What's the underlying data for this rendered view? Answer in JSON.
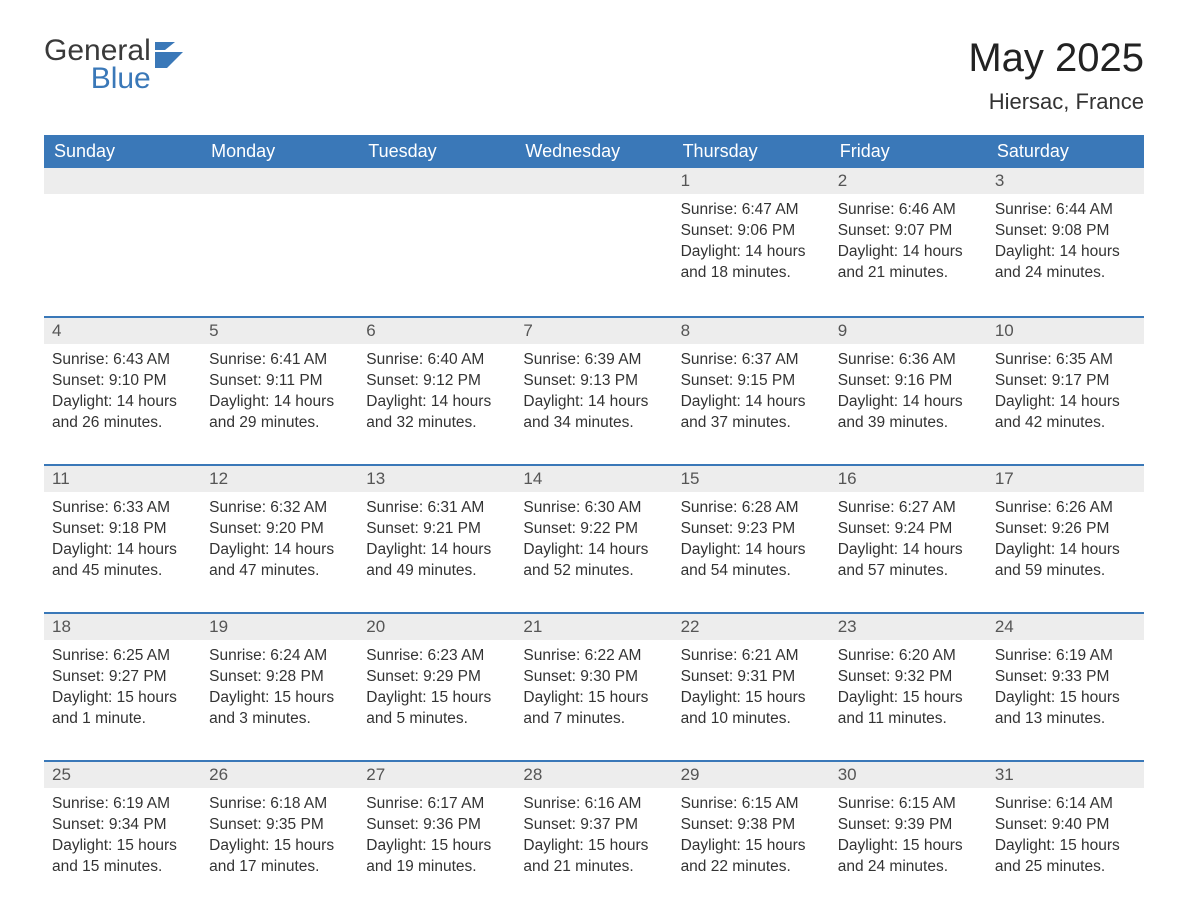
{
  "brand": {
    "word1": "General",
    "word2": "Blue"
  },
  "title": "May 2025",
  "location": "Hiersac, France",
  "colors": {
    "header_bg": "#3a78b8",
    "header_text": "#ffffff",
    "daynum_bg": "#ededed",
    "daynum_border": "#3a78b8",
    "body_text": "#333333",
    "page_bg": "#ffffff"
  },
  "fonts": {
    "title_size_pt": 30,
    "header_size_pt": 14,
    "body_size_pt": 12
  },
  "day_headers": [
    "Sunday",
    "Monday",
    "Tuesday",
    "Wednesday",
    "Thursday",
    "Friday",
    "Saturday"
  ],
  "weeks": [
    [
      null,
      null,
      null,
      null,
      {
        "n": "1",
        "sunrise": "Sunrise: 6:47 AM",
        "sunset": "Sunset: 9:06 PM",
        "daylight": "Daylight: 14 hours and 18 minutes."
      },
      {
        "n": "2",
        "sunrise": "Sunrise: 6:46 AM",
        "sunset": "Sunset: 9:07 PM",
        "daylight": "Daylight: 14 hours and 21 minutes."
      },
      {
        "n": "3",
        "sunrise": "Sunrise: 6:44 AM",
        "sunset": "Sunset: 9:08 PM",
        "daylight": "Daylight: 14 hours and 24 minutes."
      }
    ],
    [
      {
        "n": "4",
        "sunrise": "Sunrise: 6:43 AM",
        "sunset": "Sunset: 9:10 PM",
        "daylight": "Daylight: 14 hours and 26 minutes."
      },
      {
        "n": "5",
        "sunrise": "Sunrise: 6:41 AM",
        "sunset": "Sunset: 9:11 PM",
        "daylight": "Daylight: 14 hours and 29 minutes."
      },
      {
        "n": "6",
        "sunrise": "Sunrise: 6:40 AM",
        "sunset": "Sunset: 9:12 PM",
        "daylight": "Daylight: 14 hours and 32 minutes."
      },
      {
        "n": "7",
        "sunrise": "Sunrise: 6:39 AM",
        "sunset": "Sunset: 9:13 PM",
        "daylight": "Daylight: 14 hours and 34 minutes."
      },
      {
        "n": "8",
        "sunrise": "Sunrise: 6:37 AM",
        "sunset": "Sunset: 9:15 PM",
        "daylight": "Daylight: 14 hours and 37 minutes."
      },
      {
        "n": "9",
        "sunrise": "Sunrise: 6:36 AM",
        "sunset": "Sunset: 9:16 PM",
        "daylight": "Daylight: 14 hours and 39 minutes."
      },
      {
        "n": "10",
        "sunrise": "Sunrise: 6:35 AM",
        "sunset": "Sunset: 9:17 PM",
        "daylight": "Daylight: 14 hours and 42 minutes."
      }
    ],
    [
      {
        "n": "11",
        "sunrise": "Sunrise: 6:33 AM",
        "sunset": "Sunset: 9:18 PM",
        "daylight": "Daylight: 14 hours and 45 minutes."
      },
      {
        "n": "12",
        "sunrise": "Sunrise: 6:32 AM",
        "sunset": "Sunset: 9:20 PM",
        "daylight": "Daylight: 14 hours and 47 minutes."
      },
      {
        "n": "13",
        "sunrise": "Sunrise: 6:31 AM",
        "sunset": "Sunset: 9:21 PM",
        "daylight": "Daylight: 14 hours and 49 minutes."
      },
      {
        "n": "14",
        "sunrise": "Sunrise: 6:30 AM",
        "sunset": "Sunset: 9:22 PM",
        "daylight": "Daylight: 14 hours and 52 minutes."
      },
      {
        "n": "15",
        "sunrise": "Sunrise: 6:28 AM",
        "sunset": "Sunset: 9:23 PM",
        "daylight": "Daylight: 14 hours and 54 minutes."
      },
      {
        "n": "16",
        "sunrise": "Sunrise: 6:27 AM",
        "sunset": "Sunset: 9:24 PM",
        "daylight": "Daylight: 14 hours and 57 minutes."
      },
      {
        "n": "17",
        "sunrise": "Sunrise: 6:26 AM",
        "sunset": "Sunset: 9:26 PM",
        "daylight": "Daylight: 14 hours and 59 minutes."
      }
    ],
    [
      {
        "n": "18",
        "sunrise": "Sunrise: 6:25 AM",
        "sunset": "Sunset: 9:27 PM",
        "daylight": "Daylight: 15 hours and 1 minute."
      },
      {
        "n": "19",
        "sunrise": "Sunrise: 6:24 AM",
        "sunset": "Sunset: 9:28 PM",
        "daylight": "Daylight: 15 hours and 3 minutes."
      },
      {
        "n": "20",
        "sunrise": "Sunrise: 6:23 AM",
        "sunset": "Sunset: 9:29 PM",
        "daylight": "Daylight: 15 hours and 5 minutes."
      },
      {
        "n": "21",
        "sunrise": "Sunrise: 6:22 AM",
        "sunset": "Sunset: 9:30 PM",
        "daylight": "Daylight: 15 hours and 7 minutes."
      },
      {
        "n": "22",
        "sunrise": "Sunrise: 6:21 AM",
        "sunset": "Sunset: 9:31 PM",
        "daylight": "Daylight: 15 hours and 10 minutes."
      },
      {
        "n": "23",
        "sunrise": "Sunrise: 6:20 AM",
        "sunset": "Sunset: 9:32 PM",
        "daylight": "Daylight: 15 hours and 11 minutes."
      },
      {
        "n": "24",
        "sunrise": "Sunrise: 6:19 AM",
        "sunset": "Sunset: 9:33 PM",
        "daylight": "Daylight: 15 hours and 13 minutes."
      }
    ],
    [
      {
        "n": "25",
        "sunrise": "Sunrise: 6:19 AM",
        "sunset": "Sunset: 9:34 PM",
        "daylight": "Daylight: 15 hours and 15 minutes."
      },
      {
        "n": "26",
        "sunrise": "Sunrise: 6:18 AM",
        "sunset": "Sunset: 9:35 PM",
        "daylight": "Daylight: 15 hours and 17 minutes."
      },
      {
        "n": "27",
        "sunrise": "Sunrise: 6:17 AM",
        "sunset": "Sunset: 9:36 PM",
        "daylight": "Daylight: 15 hours and 19 minutes."
      },
      {
        "n": "28",
        "sunrise": "Sunrise: 6:16 AM",
        "sunset": "Sunset: 9:37 PM",
        "daylight": "Daylight: 15 hours and 21 minutes."
      },
      {
        "n": "29",
        "sunrise": "Sunrise: 6:15 AM",
        "sunset": "Sunset: 9:38 PM",
        "daylight": "Daylight: 15 hours and 22 minutes."
      },
      {
        "n": "30",
        "sunrise": "Sunrise: 6:15 AM",
        "sunset": "Sunset: 9:39 PM",
        "daylight": "Daylight: 15 hours and 24 minutes."
      },
      {
        "n": "31",
        "sunrise": "Sunrise: 6:14 AM",
        "sunset": "Sunset: 9:40 PM",
        "daylight": "Daylight: 15 hours and 25 minutes."
      }
    ]
  ]
}
